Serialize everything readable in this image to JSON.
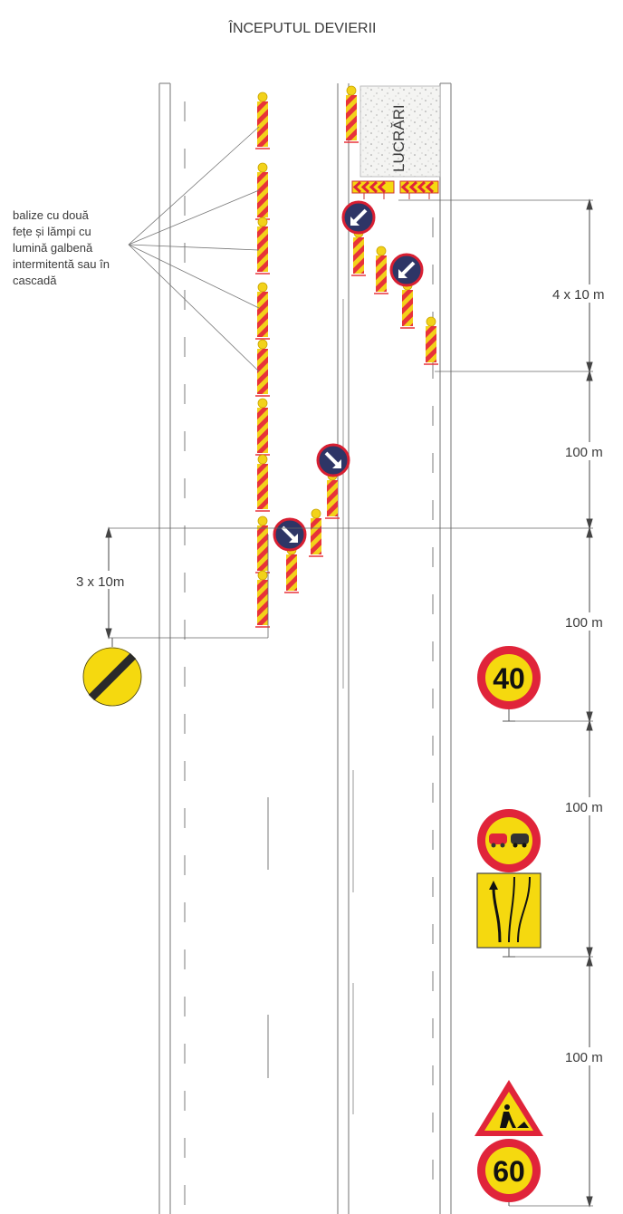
{
  "title": "ÎNCEPUTUL DEVIERII",
  "work_zone_label": "LUCRĂRI",
  "beacon_note": [
    "balize cu două",
    "fețe și lămpi cu",
    "lumină galbenă",
    "intermitentă sau în",
    "cascadă"
  ],
  "dimensions": {
    "taper_right": "4 x 10 m",
    "segment_1": "100 m",
    "segment_2": "100 m",
    "segment_3": "100 m",
    "segment_4": "100 m",
    "taper_left": "3 x 10m"
  },
  "signs": {
    "speed_limit_40": "40",
    "speed_limit_60": "60",
    "end_restrictions": "end-of-restrictions-icon",
    "no_overtaking": "no-overtaking-icon",
    "lane_shift": "lane-shift-icon",
    "road_works": "road-works-icon",
    "keep_left": "keep-left-icon",
    "keep_right": "keep-right-icon"
  },
  "colors": {
    "beacon_red": "#e8323a",
    "beacon_yellow": "#f2d21a",
    "sign_red": "#e0243a",
    "sign_yellow": "#f5d90f",
    "mandatory_blue": "#2e3566"
  }
}
